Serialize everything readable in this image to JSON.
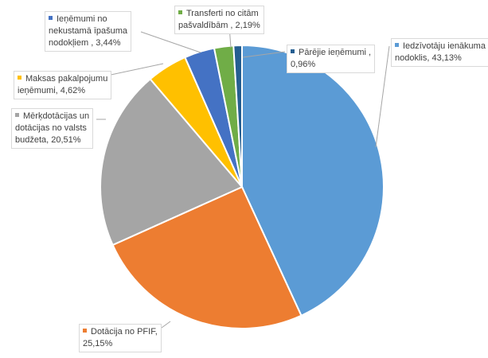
{
  "chart_data": {
    "type": "pie",
    "slices": [
      {
        "label_lines": [
          "Iedzīvotāju ienākuma",
          "nodoklis, 43,13%"
        ],
        "value": 43.13,
        "color": "#5B9BD5"
      },
      {
        "label_lines": [
          "Dotācija no PFIF,",
          "25,15%"
        ],
        "value": 25.15,
        "color": "#ED7D31"
      },
      {
        "label_lines": [
          "Mērķdotācijas un",
          "dotācijas no valsts",
          "budžeta, 20,51%"
        ],
        "value": 20.51,
        "color": "#A5A5A5"
      },
      {
        "label_lines": [
          "Maksas pakalpojumu",
          "ieņēmumi, 4,62%"
        ],
        "value": 4.62,
        "color": "#FFC000"
      },
      {
        "label_lines": [
          "Ieņēmumi no",
          "nekustamā īpašuma",
          "nodokļiem , 3,44%"
        ],
        "value": 3.44,
        "color": "#4472C4"
      },
      {
        "label_lines": [
          "Transferti no citām",
          "pašvaldībām , 2,19%"
        ],
        "value": 2.19,
        "color": "#70AD47"
      },
      {
        "label_lines": [
          "Pārējie ieņēmumi ,",
          "0,96%"
        ],
        "value": 0.96,
        "color": "#255E91"
      }
    ]
  }
}
